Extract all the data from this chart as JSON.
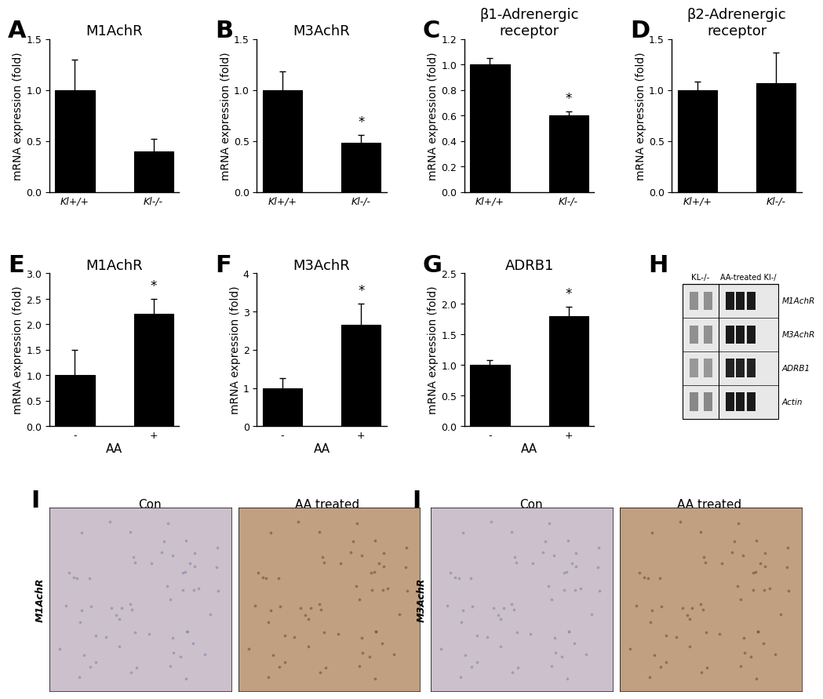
{
  "panel_A": {
    "title": "M1AchR",
    "label": "A",
    "values": [
      1.0,
      0.4
    ],
    "errors": [
      0.3,
      0.12
    ],
    "ylim": [
      0,
      1.5
    ],
    "yticks": [
      0,
      0.5,
      1.0,
      1.5
    ],
    "ylabel": "mRNA expression (fold)",
    "xlabel": "",
    "star": [
      false,
      false
    ],
    "xticklabels": [
      "Kl+/+",
      "Kl-/-"
    ]
  },
  "panel_B": {
    "title": "M3AchR",
    "label": "B",
    "values": [
      1.0,
      0.48
    ],
    "errors": [
      0.18,
      0.08
    ],
    "ylim": [
      0,
      1.5
    ],
    "yticks": [
      0,
      0.5,
      1.0,
      1.5
    ],
    "ylabel": "mRNA expression (fold)",
    "xlabel": "",
    "star": [
      false,
      true
    ],
    "xticklabels": [
      "Kl+/+",
      "Kl-/-"
    ]
  },
  "panel_C": {
    "title": "β1-Adrenergic\nreceptor",
    "label": "C",
    "values": [
      1.0,
      0.6
    ],
    "errors": [
      0.05,
      0.03
    ],
    "ylim": [
      0,
      1.2
    ],
    "yticks": [
      0,
      0.2,
      0.4,
      0.6,
      0.8,
      1.0,
      1.2
    ],
    "ylabel": "mRNA expression (fold)",
    "xlabel": "",
    "star": [
      false,
      true
    ],
    "xticklabels": [
      "Kl+/+",
      "Kl-/-"
    ]
  },
  "panel_D": {
    "title": "β2-Adrenergic\nreceptor",
    "label": "D",
    "values": [
      1.0,
      1.07
    ],
    "errors": [
      0.08,
      0.3
    ],
    "ylim": [
      0,
      1.5
    ],
    "yticks": [
      0,
      0.5,
      1.0,
      1.5
    ],
    "ylabel": "mRNA expression (fold)",
    "xlabel": "",
    "star": [
      false,
      false
    ],
    "xticklabels": [
      "Kl+/+",
      "Kl-/-"
    ]
  },
  "panel_E": {
    "title": "M1AchR",
    "label": "E",
    "values": [
      1.0,
      2.2
    ],
    "errors": [
      0.5,
      0.3
    ],
    "ylim": [
      0,
      3.0
    ],
    "yticks": [
      0,
      0.5,
      1.0,
      1.5,
      2.0,
      2.5,
      3.0
    ],
    "ylabel": "mRNA expression (fold)",
    "xlabel": "AA",
    "star": [
      false,
      true
    ],
    "xticklabels": [
      "-",
      "+"
    ]
  },
  "panel_F": {
    "title": "M3AchR",
    "label": "F",
    "values": [
      1.0,
      2.65
    ],
    "errors": [
      0.25,
      0.55
    ],
    "ylim": [
      0,
      4.0
    ],
    "yticks": [
      0,
      1,
      2,
      3,
      4
    ],
    "ylabel": "mRNA expression (fold)",
    "xlabel": "AA",
    "star": [
      false,
      true
    ],
    "xticklabels": [
      "-",
      "+"
    ]
  },
  "panel_G": {
    "title": "ADRB1",
    "label": "G",
    "values": [
      1.0,
      1.8
    ],
    "errors": [
      0.08,
      0.15
    ],
    "ylim": [
      0,
      2.5
    ],
    "yticks": [
      0,
      0.5,
      1.0,
      1.5,
      2.0,
      2.5
    ],
    "ylabel": "mRNA expression (fold)",
    "xlabel": "AA",
    "star": [
      false,
      true
    ],
    "xticklabels": [
      "-",
      "+"
    ]
  },
  "wb_header_left": "KL-/-",
  "wb_header_right": "AA-treated KI-/",
  "wb_bands": [
    "M1AchR",
    "M3AchR",
    "ADRB1",
    "Actin"
  ],
  "bar_color": "#000000",
  "bar_width": 0.5,
  "background_color": "#ffffff",
  "panel_label_fontsize": 22,
  "title_fontsize": 13,
  "axis_fontsize": 10,
  "tick_fontsize": 9,
  "xlabel_fontsize": 11,
  "ihc_I_left_color": "#c8bfbe",
  "ihc_I_right_color": "#a07858",
  "ihc_J_left_color": "#c8bfbe",
  "ihc_J_right_color": "#b08868"
}
